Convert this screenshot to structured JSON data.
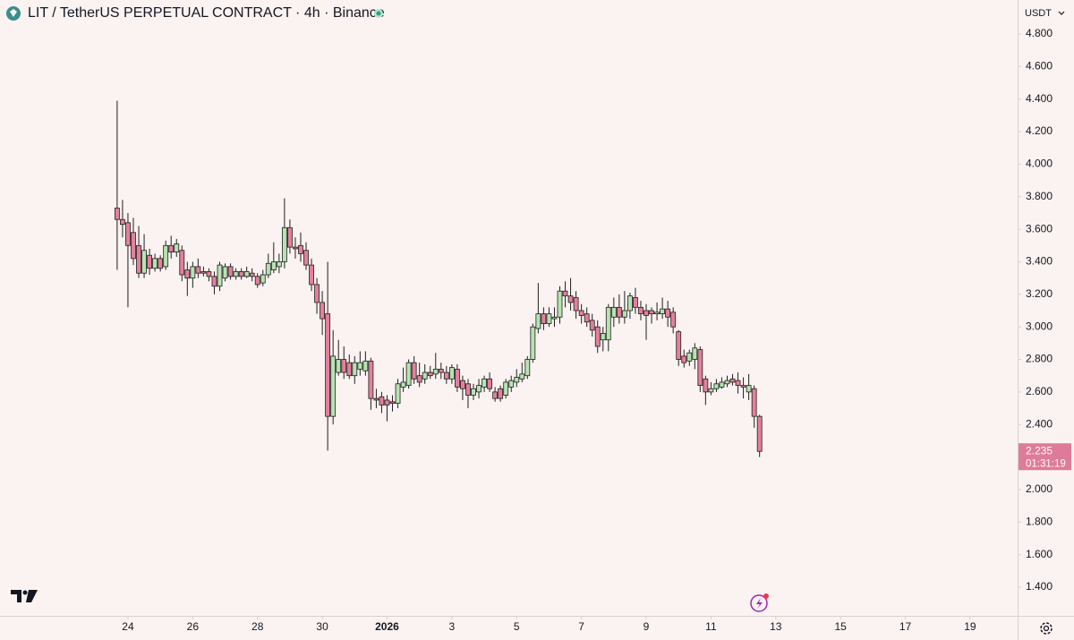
{
  "chart_data": {
    "type": "candlestick",
    "title": "LIT / TetherUS PERPETUAL CONTRACT · 4h · Binance",
    "currency": "USDT",
    "countdown": "01:31:19",
    "last_price": 2.235,
    "up_color": "#b7e3b1",
    "down_color": "#e4809c",
    "open": [
      3.73,
      3.66,
      3.64,
      3.58,
      3.5,
      3.33,
      3.44,
      3.36,
      3.42,
      3.37,
      3.5,
      3.46,
      3.47,
      3.35,
      3.3,
      3.37,
      3.34,
      3.34,
      3.31,
      3.25,
      3.3,
      3.37,
      3.31,
      3.34,
      3.31,
      3.33,
      3.31,
      3.27,
      3.32,
      3.35,
      3.37,
      3.4,
      3.61,
      3.49,
      3.5,
      3.47,
      3.38,
      3.26,
      3.15,
      3.08,
      2.45,
      2.72,
      2.8,
      2.78,
      2.7,
      2.74,
      2.73,
      2.79,
      2.56,
      2.57,
      2.55,
      2.54,
      2.53,
      2.63,
      2.64,
      2.78,
      2.7,
      2.68,
      2.72,
      2.71,
      2.74,
      2.72,
      2.68,
      2.74,
      2.67,
      2.65,
      2.58,
      2.6,
      2.63,
      2.68,
      2.6,
      2.62,
      2.58,
      2.63,
      2.66,
      2.68,
      2.7,
      2.8,
      2.99,
      3.08,
      3.02,
      3.05,
      3.06,
      3.22,
      3.19,
      3.18,
      3.1,
      3.08,
      3.04,
      3.0,
      2.92,
      2.92,
      3.06,
      3.12,
      3.06,
      3.1,
      3.18,
      3.12,
      3.1,
      3.1,
      3.08,
      3.08,
      3.11,
      3.09,
      2.97,
      2.82,
      2.79,
      2.8,
      2.86,
      2.68,
      2.6,
      2.62,
      2.63,
      2.65,
      2.68,
      2.67,
      2.64,
      2.6,
      2.62,
      2.45
    ],
    "high": [
      4.39,
      3.78,
      3.7,
      3.67,
      3.62,
      3.57,
      3.48,
      3.45,
      3.44,
      3.53,
      3.56,
      3.54,
      3.5,
      3.4,
      3.4,
      3.42,
      3.37,
      3.36,
      3.34,
      3.4,
      3.39,
      3.39,
      3.36,
      3.36,
      3.37,
      3.36,
      3.33,
      3.35,
      3.45,
      3.52,
      3.45,
      3.79,
      3.66,
      3.55,
      3.58,
      3.52,
      3.42,
      3.3,
      3.22,
      3.4,
      2.98,
      2.92,
      2.88,
      2.83,
      2.82,
      2.85,
      2.85,
      2.81,
      2.62,
      2.6,
      2.58,
      2.58,
      2.68,
      2.75,
      2.8,
      2.82,
      2.78,
      2.77,
      2.76,
      2.84,
      2.78,
      2.76,
      2.77,
      2.77,
      2.7,
      2.68,
      2.65,
      2.68,
      2.7,
      2.72,
      2.63,
      2.64,
      2.68,
      2.7,
      2.74,
      2.78,
      2.82,
      3.02,
      3.27,
      3.12,
      3.12,
      3.12,
      3.25,
      3.28,
      3.3,
      3.22,
      3.14,
      3.12,
      3.08,
      3.04,
      3.0,
      3.14,
      3.18,
      3.2,
      3.22,
      3.21,
      3.24,
      3.16,
      3.14,
      3.12,
      3.15,
      3.18,
      3.16,
      3.12,
      2.98,
      2.86,
      2.86,
      2.9,
      2.88,
      2.7,
      2.66,
      2.68,
      2.69,
      2.7,
      2.71,
      2.72,
      2.69,
      2.71,
      2.64,
      2.46
    ],
    "low": [
      3.35,
      3.55,
      3.12,
      3.38,
      3.3,
      3.3,
      3.32,
      3.34,
      3.34,
      3.35,
      3.42,
      3.43,
      3.28,
      3.19,
      3.24,
      3.3,
      3.31,
      3.28,
      3.2,
      3.22,
      3.28,
      3.29,
      3.29,
      3.29,
      3.3,
      3.28,
      3.24,
      3.25,
      3.3,
      3.33,
      3.33,
      3.36,
      3.45,
      3.42,
      3.4,
      3.35,
      3.22,
      3.08,
      2.95,
      2.24,
      2.4,
      2.7,
      2.68,
      2.68,
      2.65,
      2.7,
      2.7,
      2.49,
      2.5,
      2.47,
      2.42,
      2.48,
      2.5,
      2.6,
      2.62,
      2.65,
      2.63,
      2.65,
      2.68,
      2.68,
      2.68,
      2.65,
      2.65,
      2.6,
      2.55,
      2.5,
      2.55,
      2.56,
      2.6,
      2.6,
      2.54,
      2.54,
      2.56,
      2.6,
      2.63,
      2.66,
      2.68,
      2.78,
      2.96,
      2.98,
      3.0,
      3.0,
      3.02,
      3.12,
      3.1,
      3.05,
      3.02,
      3.0,
      2.94,
      2.84,
      2.85,
      2.85,
      3.0,
      3.02,
      3.02,
      3.05,
      3.08,
      3.04,
      2.92,
      3.02,
      3.04,
      3.05,
      3.0,
      2.96,
      2.76,
      2.75,
      2.76,
      2.74,
      2.6,
      2.52,
      2.58,
      2.6,
      2.62,
      2.63,
      2.64,
      2.59,
      2.56,
      2.55,
      2.38,
      2.2
    ],
    "close": [
      3.66,
      3.63,
      3.5,
      3.42,
      3.33,
      3.47,
      3.36,
      3.42,
      3.36,
      3.5,
      3.46,
      3.51,
      3.32,
      3.3,
      3.37,
      3.33,
      3.33,
      3.31,
      3.25,
      3.38,
      3.37,
      3.31,
      3.34,
      3.31,
      3.34,
      3.31,
      3.26,
      3.32,
      3.39,
      3.4,
      3.4,
      3.61,
      3.49,
      3.48,
      3.45,
      3.38,
      3.26,
      3.15,
      3.05,
      2.45,
      2.82,
      2.8,
      2.72,
      2.7,
      2.78,
      2.78,
      2.79,
      2.56,
      2.55,
      2.52,
      2.52,
      2.53,
      2.65,
      2.66,
      2.78,
      2.68,
      2.66,
      2.72,
      2.7,
      2.74,
      2.72,
      2.68,
      2.75,
      2.63,
      2.62,
      2.58,
      2.62,
      2.64,
      2.68,
      2.62,
      2.56,
      2.56,
      2.66,
      2.67,
      2.69,
      2.71,
      2.8,
      3.0,
      3.08,
      3.02,
      3.08,
      3.06,
      3.22,
      3.19,
      3.15,
      3.1,
      3.07,
      3.03,
      2.98,
      2.88,
      2.96,
      3.12,
      3.12,
      3.06,
      3.1,
      3.19,
      3.12,
      3.08,
      3.07,
      3.08,
      3.09,
      3.11,
      3.06,
      3.0,
      2.8,
      2.78,
      2.84,
      2.87,
      2.64,
      2.6,
      2.62,
      2.65,
      2.66,
      2.67,
      2.66,
      2.64,
      2.63,
      2.64,
      2.45,
      2.235
    ],
    "xlim": [
      -21.7,
      166.8
    ],
    "xticks": [
      {
        "value": 2,
        "label": "24"
      },
      {
        "value": 14,
        "label": "26"
      },
      {
        "value": 26,
        "label": "28"
      },
      {
        "value": 38,
        "label": "30"
      },
      {
        "value": 50,
        "label": "2026"
      },
      {
        "value": 62,
        "label": "3"
      },
      {
        "value": 74,
        "label": "5"
      },
      {
        "value": 86,
        "label": "7"
      },
      {
        "value": 98,
        "label": "9"
      },
      {
        "value": 110,
        "label": "11"
      },
      {
        "value": 122,
        "label": "13"
      },
      {
        "value": 134,
        "label": "15"
      },
      {
        "value": 146,
        "label": "17"
      },
      {
        "value": 158,
        "label": "19"
      }
    ],
    "ylim": [
      1.224,
      5.009
    ],
    "yticks": [
      {
        "value": 1.4,
        "label": "1.400"
      },
      {
        "value": 1.6,
        "label": "1.600"
      },
      {
        "value": 1.8,
        "label": "1.800"
      },
      {
        "value": 2.0,
        "label": "2.000"
      },
      {
        "value": 2.2,
        "label": "2.200"
      },
      {
        "value": 2.4,
        "label": "2.400"
      },
      {
        "value": 2.6,
        "label": "2.600"
      },
      {
        "value": 2.8,
        "label": "2.800"
      },
      {
        "value": 3.0,
        "label": "3.000"
      },
      {
        "value": 3.2,
        "label": "3.200"
      },
      {
        "value": 3.4,
        "label": "3.400"
      },
      {
        "value": 3.6,
        "label": "3.600"
      },
      {
        "value": 3.8,
        "label": "3.800"
      },
      {
        "value": 4.0,
        "label": "4.000"
      },
      {
        "value": 4.2,
        "label": "4.200"
      },
      {
        "value": 4.4,
        "label": "4.400"
      },
      {
        "value": 4.6,
        "label": "4.600"
      },
      {
        "value": 4.8,
        "label": "4.800"
      }
    ]
  }
}
